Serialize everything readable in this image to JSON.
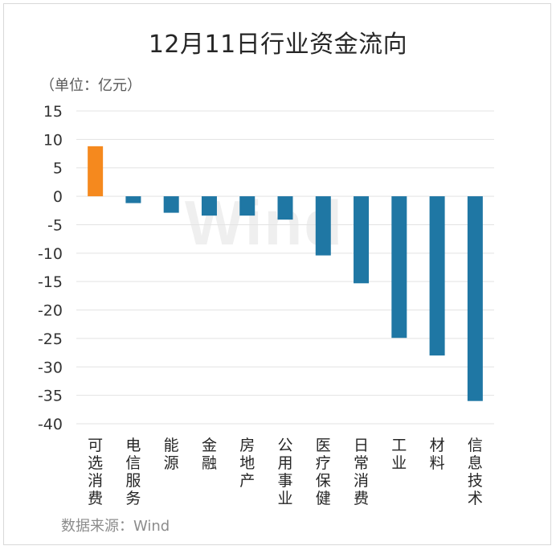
{
  "chart_data": {
    "type": "bar",
    "title": "12月11日行业资金流向",
    "unit_label": "（单位：亿元）",
    "source": "数据来源：Wind",
    "watermark": "Wind",
    "ylim": [
      -40,
      15
    ],
    "yticks": [
      15,
      10,
      5,
      0,
      -5,
      -10,
      -15,
      -20,
      -25,
      -30,
      -35,
      -40
    ],
    "grid": true,
    "categories": [
      "可选消费",
      "电信服务",
      "能源",
      "金融",
      "房地产",
      "公用事业",
      "医疗保健",
      "日常消费",
      "工业",
      "材料",
      "信息技术"
    ],
    "values": [
      8.8,
      -1.2,
      -2.9,
      -3.4,
      -3.4,
      -4.1,
      -10.4,
      -15.3,
      -24.9,
      -28.0,
      -36.0
    ],
    "colors": {
      "positive": "#f5891e",
      "negative": "#1f77a4"
    }
  }
}
